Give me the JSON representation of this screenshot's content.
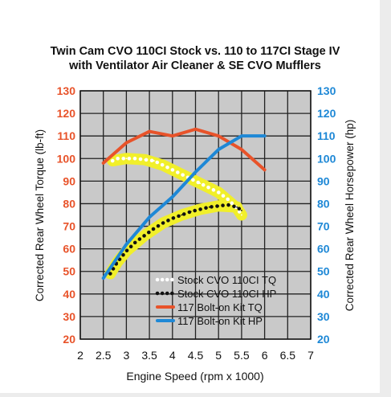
{
  "chart_data": {
    "type": "line",
    "title_lines": [
      "Twin Cam CVO 110CI Stock vs. 110 to 117CI Stage IV",
      "with Ventilator Air Cleaner & SE CVO Mufflers"
    ],
    "xlabel": "Engine Speed (rpm x 1000)",
    "ylabel_left": "Corrected Rear Wheel Torque (lb-ft)",
    "ylabel_right": "Corrected Rear Wheel Horsepower (hp)",
    "xlim": [
      2,
      7
    ],
    "ylim": [
      20,
      130
    ],
    "x_ticks": [
      "2",
      "2.5",
      "3",
      "3.5",
      "4",
      "4.5",
      "5",
      "5.5",
      "6",
      "6.5",
      "7"
    ],
    "y_ticks_left": [
      "20",
      "30",
      "40",
      "50",
      "60",
      "70",
      "80",
      "90",
      "100",
      "110",
      "120",
      "130"
    ],
    "y_ticks_right": [
      "20",
      "30",
      "40",
      "50",
      "60",
      "70",
      "80",
      "90",
      "100",
      "110",
      "120",
      "130"
    ],
    "grid": true,
    "legend_position": "bottom-right",
    "series": [
      {
        "name": "Stock CVO 110CI TQ",
        "style": "dotted-white",
        "color": "#ffffff",
        "x": [
          2.7,
          2.8,
          3.0,
          3.2,
          3.4,
          3.6,
          3.8,
          4.0,
          4.2,
          4.4,
          4.6,
          4.8,
          5.0,
          5.2,
          5.4,
          5.5
        ],
        "y": [
          99,
          100,
          100,
          100,
          99.5,
          99,
          97,
          95,
          93,
          91,
          89,
          87,
          85,
          82,
          78,
          75
        ]
      },
      {
        "name": "Stock CVO 110CI HP",
        "style": "dotted-black",
        "color": "#111111",
        "x": [
          2.65,
          2.8,
          3.0,
          3.2,
          3.4,
          3.6,
          3.8,
          4.0,
          4.2,
          4.4,
          4.6,
          4.8,
          5.0,
          5.2,
          5.4,
          5.5
        ],
        "y": [
          49,
          54,
          59,
          63,
          66,
          69,
          71.5,
          73.5,
          75,
          76.5,
          77.5,
          78.5,
          79,
          79.5,
          78.5,
          77
        ]
      },
      {
        "name": "117 Bolt-on Kit TQ",
        "style": "solid",
        "color": "#e8532a",
        "x": [
          2.5,
          3.0,
          3.5,
          4.0,
          4.5,
          5.0,
          5.5,
          6.0
        ],
        "y": [
          98,
          107,
          112,
          110,
          113,
          110,
          104,
          95
        ]
      },
      {
        "name": "117 Bolt-on Kit HP",
        "style": "solid",
        "color": "#1e88d6",
        "x": [
          2.5,
          3.0,
          3.5,
          4.0,
          4.5,
          5.0,
          5.5,
          6.0
        ],
        "y": [
          47,
          62,
          74,
          83,
          94,
          104,
          110,
          110
        ]
      }
    ],
    "highlight_band": {
      "color": "#f1ef2a",
      "tq_x": [
        2.7,
        3.0,
        3.4,
        3.8,
        4.2,
        4.6,
        5.0,
        5.4,
        5.5
      ],
      "tq_y": [
        99,
        100,
        99.5,
        97,
        93,
        89,
        85,
        78,
        75
      ],
      "hp_x": [
        2.65,
        2.8,
        3.0,
        3.4,
        3.8,
        4.2,
        4.6,
        5.0,
        5.4
      ],
      "hp_y": [
        49,
        54,
        59,
        66,
        71.5,
        75,
        77.5,
        79,
        78.5
      ]
    },
    "colors": {
      "plot_background": "#c9c9c9",
      "grid": "#222222",
      "left_axis": "#e8532a",
      "right_axis": "#1e88d6"
    }
  }
}
